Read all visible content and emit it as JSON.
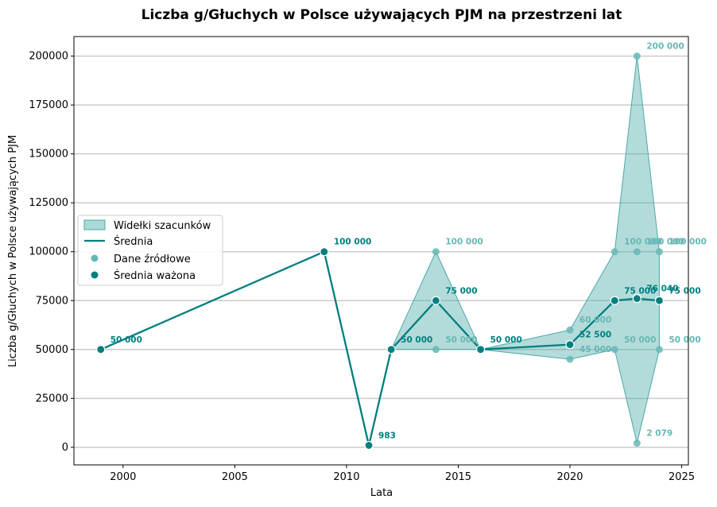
{
  "chart_data": {
    "type": "line",
    "title": "Liczba g/Głuchych w Polsce używających PJM na przestrzeni lat",
    "xlabel": "Lata",
    "ylabel": "Liczba g/Głuchych w Polsce używających PJM",
    "xlim": [
      1997.8,
      2025.3
    ],
    "ylim": [
      -9000,
      210000
    ],
    "x_ticks": [
      2000,
      2005,
      2010,
      2015,
      2020,
      2025
    ],
    "y_ticks": [
      0,
      25000,
      50000,
      75000,
      100000,
      125000,
      150000,
      175000,
      200000
    ],
    "grid": "horizontal",
    "legend_position": "center-left",
    "legend": [
      "Widełki szacunków",
      "Średnia",
      "Dane źródłowe",
      "Średnia ważona"
    ],
    "colors": {
      "main": "#007f7f",
      "band": "#4aa9a6",
      "source": "#66b8b5",
      "grid": "#cccccc"
    },
    "range_band": [
      {
        "x": 2012,
        "low": 50000,
        "high": 50000
      },
      {
        "x": 2014,
        "low": 50000,
        "high": 100000
      },
      {
        "x": 2016,
        "low": 50000,
        "high": 50000
      },
      {
        "x": 2020,
        "low": 45000,
        "high": 60000
      },
      {
        "x": 2022,
        "low": 50000,
        "high": 100000
      },
      {
        "x": 2023,
        "low": 2079,
        "high": 200000
      },
      {
        "x": 2024,
        "low": 50000,
        "high": 100000
      }
    ],
    "mean_series": [
      {
        "x": 1999,
        "y": 50000,
        "label": "50 000"
      },
      {
        "x": 2009,
        "y": 100000,
        "label": "100 000"
      },
      {
        "x": 2011,
        "y": 983,
        "label": "983"
      },
      {
        "x": 2012,
        "y": 50000,
        "label": "50 000"
      },
      {
        "x": 2014,
        "y": 75000,
        "label": "75 000"
      },
      {
        "x": 2016,
        "y": 50000,
        "label": "50 000"
      },
      {
        "x": 2020,
        "y": 52500,
        "label": "52 500"
      },
      {
        "x": 2022,
        "y": 75000,
        "label": "75 000"
      },
      {
        "x": 2023,
        "y": 76040,
        "label": "76 040"
      },
      {
        "x": 2024,
        "y": 75000,
        "label": "75 000"
      }
    ],
    "source_points": [
      {
        "x": 2014,
        "y": 100000,
        "label": "100 000"
      },
      {
        "x": 2014,
        "y": 50000,
        "label": "50 000"
      },
      {
        "x": 2020,
        "y": 60000,
        "label": "60 000"
      },
      {
        "x": 2020,
        "y": 45000,
        "label": "45 000"
      },
      {
        "x": 2022,
        "y": 100000,
        "label": "100 000"
      },
      {
        "x": 2022,
        "y": 50000,
        "label": "50 000"
      },
      {
        "x": 2023,
        "y": 200000,
        "label": "200 000"
      },
      {
        "x": 2023,
        "y": 100000,
        "label": "100 000"
      },
      {
        "x": 2023,
        "y": 2079,
        "label": "2 079"
      },
      {
        "x": 2024,
        "y": 100000,
        "label": "100 000"
      },
      {
        "x": 2024,
        "y": 50000,
        "label": "50 000"
      }
    ]
  }
}
